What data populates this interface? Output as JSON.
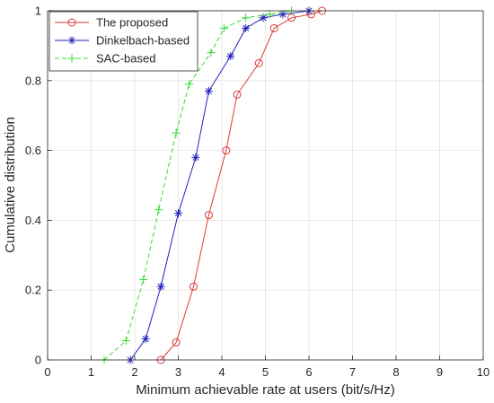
{
  "chart_data": {
    "type": "line",
    "title": "",
    "xlabel": "Minimum achievable rate at users (bit/s/Hz)",
    "ylabel": "Cumulative distribution",
    "xlim": [
      0,
      10
    ],
    "ylim": [
      0,
      1
    ],
    "xticks": [
      "0",
      "1",
      "2",
      "3",
      "4",
      "5",
      "6",
      "7",
      "8",
      "9",
      "10"
    ],
    "yticks": [
      "0",
      "0.2",
      "0.4",
      "0.6",
      "0.8",
      "1"
    ],
    "grid": true,
    "legend_position": "top-left",
    "series": [
      {
        "name": "The proposed",
        "color": "#d93a3a",
        "line_style": "solid",
        "marker": "circle",
        "x": [
          2.6,
          2.95,
          3.35,
          3.7,
          4.1,
          4.35,
          4.85,
          5.2,
          5.6,
          6.05,
          6.3
        ],
        "y": [
          0.0,
          0.05,
          0.21,
          0.415,
          0.6,
          0.76,
          0.85,
          0.95,
          0.98,
          0.99,
          1.0
        ]
      },
      {
        "name": "Dinkelbach-based",
        "color": "#2222bb",
        "line_style": "solid",
        "marker": "asterisk",
        "x": [
          1.9,
          2.25,
          2.6,
          3.0,
          3.4,
          3.7,
          4.2,
          4.55,
          4.95,
          5.4,
          6.0
        ],
        "y": [
          0.0,
          0.06,
          0.21,
          0.42,
          0.58,
          0.77,
          0.87,
          0.95,
          0.98,
          0.99,
          1.0
        ]
      },
      {
        "name": "SAC-based",
        "color": "#33dd33",
        "line_style": "dashed",
        "marker": "plus",
        "x": [
          1.3,
          1.8,
          2.2,
          2.55,
          2.95,
          3.25,
          3.75,
          4.05,
          4.55,
          5.1,
          5.6
        ],
        "y": [
          0.0,
          0.055,
          0.23,
          0.43,
          0.65,
          0.79,
          0.88,
          0.95,
          0.98,
          0.99,
          1.0
        ]
      }
    ]
  }
}
